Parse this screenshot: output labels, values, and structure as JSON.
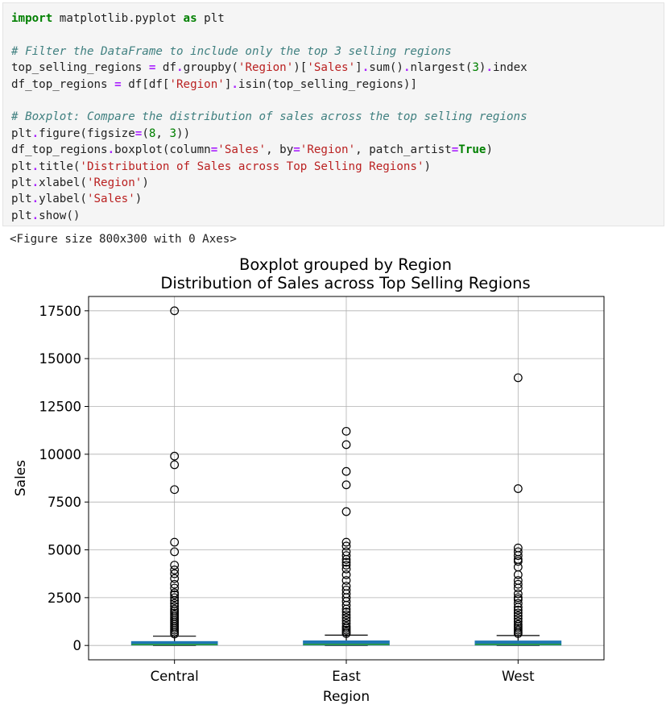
{
  "code_cell": {
    "lines": [
      [
        {
          "t": "import",
          "c": "kw"
        },
        {
          "t": " matplotlib.pyplot ",
          "c": "n"
        },
        {
          "t": "as",
          "c": "kw"
        },
        {
          "t": " plt",
          "c": "n"
        }
      ],
      [],
      [
        {
          "t": "# Filter the DataFrame to include only the top 3 selling regions",
          "c": "cmt"
        }
      ],
      [
        {
          "t": "top_selling_regions ",
          "c": "n"
        },
        {
          "t": "=",
          "c": "op"
        },
        {
          "t": " df",
          "c": "n"
        },
        {
          "t": ".",
          "c": "op"
        },
        {
          "t": "groupby(",
          "c": "n"
        },
        {
          "t": "'Region'",
          "c": "str"
        },
        {
          "t": ")[",
          "c": "n"
        },
        {
          "t": "'Sales'",
          "c": "str"
        },
        {
          "t": "]",
          "c": "n"
        },
        {
          "t": ".",
          "c": "op"
        },
        {
          "t": "sum()",
          "c": "n"
        },
        {
          "t": ".",
          "c": "op"
        },
        {
          "t": "nlargest(",
          "c": "n"
        },
        {
          "t": "3",
          "c": "num"
        },
        {
          "t": ")",
          "c": "n"
        },
        {
          "t": ".",
          "c": "op"
        },
        {
          "t": "index",
          "c": "n"
        }
      ],
      [
        {
          "t": "df_top_regions ",
          "c": "n"
        },
        {
          "t": "=",
          "c": "op"
        },
        {
          "t": " df[df[",
          "c": "n"
        },
        {
          "t": "'Region'",
          "c": "str"
        },
        {
          "t": "]",
          "c": "n"
        },
        {
          "t": ".",
          "c": "op"
        },
        {
          "t": "isin(top_selling_regions)]",
          "c": "n"
        }
      ],
      [],
      [
        {
          "t": "# Boxplot: Compare the distribution of sales across the top selling regions",
          "c": "cmt"
        }
      ],
      [
        {
          "t": "plt",
          "c": "n"
        },
        {
          "t": ".",
          "c": "op"
        },
        {
          "t": "figure(figsize",
          "c": "n"
        },
        {
          "t": "=",
          "c": "op"
        },
        {
          "t": "(",
          "c": "n"
        },
        {
          "t": "8",
          "c": "num"
        },
        {
          "t": ", ",
          "c": "n"
        },
        {
          "t": "3",
          "c": "num"
        },
        {
          "t": "))",
          "c": "n"
        }
      ],
      [
        {
          "t": "df_top_regions",
          "c": "n"
        },
        {
          "t": ".",
          "c": "op"
        },
        {
          "t": "boxplot(column",
          "c": "n"
        },
        {
          "t": "=",
          "c": "op"
        },
        {
          "t": "'Sales'",
          "c": "str"
        },
        {
          "t": ", by",
          "c": "n"
        },
        {
          "t": "=",
          "c": "op"
        },
        {
          "t": "'Region'",
          "c": "str"
        },
        {
          "t": ", patch_artist",
          "c": "n"
        },
        {
          "t": "=",
          "c": "op"
        },
        {
          "t": "True",
          "c": "kw"
        },
        {
          "t": ")",
          "c": "n"
        }
      ],
      [
        {
          "t": "plt",
          "c": "n"
        },
        {
          "t": ".",
          "c": "op"
        },
        {
          "t": "title(",
          "c": "n"
        },
        {
          "t": "'Distribution of Sales across Top Selling Regions'",
          "c": "str"
        },
        {
          "t": ")",
          "c": "n"
        }
      ],
      [
        {
          "t": "plt",
          "c": "n"
        },
        {
          "t": ".",
          "c": "op"
        },
        {
          "t": "xlabel(",
          "c": "n"
        },
        {
          "t": "'Region'",
          "c": "str"
        },
        {
          "t": ")",
          "c": "n"
        }
      ],
      [
        {
          "t": "plt",
          "c": "n"
        },
        {
          "t": ".",
          "c": "op"
        },
        {
          "t": "ylabel(",
          "c": "n"
        },
        {
          "t": "'Sales'",
          "c": "str"
        },
        {
          "t": ")",
          "c": "n"
        }
      ],
      [
        {
          "t": "plt",
          "c": "n"
        },
        {
          "t": ".",
          "c": "op"
        },
        {
          "t": "show()",
          "c": "n"
        }
      ]
    ]
  },
  "output_text": "<Figure size 800x300 with 0 Axes>",
  "colors": {
    "box_fill": "#1f77b4",
    "median": "#2ca02c",
    "grid": "#b0b0b0",
    "axis": "#000000"
  },
  "chart_data": {
    "type": "box",
    "suptitle": "Boxplot grouped by Region",
    "title": "Distribution of Sales across Top Selling Regions",
    "xlabel": "Region",
    "ylabel": "Sales",
    "categories": [
      "Central",
      "East",
      "West"
    ],
    "ylim": [
      -750,
      18250
    ],
    "yticks": [
      0,
      2500,
      5000,
      7500,
      10000,
      12500,
      15000,
      17500
    ],
    "grid": true,
    "boxes": [
      {
        "name": "Central",
        "whislo": 0,
        "q1": 20,
        "med": 45,
        "q3": 205,
        "whishi": 485,
        "fliers": [
          17500,
          9900,
          9450,
          8150,
          5400,
          4900,
          4200,
          3950,
          3750,
          3500,
          3200,
          3000,
          2750,
          2650,
          2500,
          2350,
          2200,
          2050,
          1900,
          1800,
          1700,
          1600,
          1500,
          1400,
          1300,
          1200,
          1100,
          1000,
          900,
          800,
          700,
          600
        ]
      },
      {
        "name": "East",
        "whislo": 0,
        "q1": 18,
        "med": 55,
        "q3": 240,
        "whishi": 540,
        "fliers": [
          11200,
          10500,
          9100,
          8400,
          7000,
          5400,
          5200,
          4900,
          4700,
          4500,
          4350,
          4200,
          4000,
          3700,
          3400,
          3100,
          2900,
          2700,
          2500,
          2300,
          2100,
          1900,
          1750,
          1600,
          1450,
          1300,
          1150,
          1000,
          900,
          800,
          700,
          620
        ]
      },
      {
        "name": "West",
        "whislo": 0,
        "q1": 18,
        "med": 55,
        "q3": 235,
        "whishi": 520,
        "fliers": [
          14000,
          8200,
          5100,
          4900,
          4700,
          4500,
          4400,
          4100,
          3700,
          3400,
          3200,
          3000,
          2700,
          2500,
          2400,
          2200,
          2000,
          1850,
          1700,
          1550,
          1400,
          1250,
          1100,
          1000,
          900,
          800,
          700,
          620
        ]
      }
    ]
  }
}
